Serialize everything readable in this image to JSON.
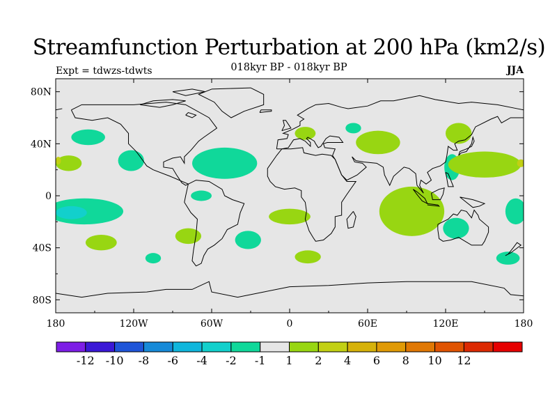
{
  "title": "Streamfunction Perturbation at 200 hPa (km2/s)",
  "subtitle": "018kyr BP - 018kyr BP",
  "left_string": "Expt = tdwzs-tdwts",
  "right_string": "JJA",
  "chart_data": {
    "type": "map-contour",
    "projection": "cylindrical equidistant",
    "xlim": [
      -180,
      180
    ],
    "ylim": [
      -90,
      90
    ],
    "x_ticks": [
      {
        "value": -180,
        "label": "180"
      },
      {
        "value": -120,
        "label": "120W"
      },
      {
        "value": -60,
        "label": "60W"
      },
      {
        "value": 0,
        "label": "0"
      },
      {
        "value": 60,
        "label": "60E"
      },
      {
        "value": 120,
        "label": "120E"
      },
      {
        "value": 180,
        "label": "180"
      }
    ],
    "y_ticks": [
      {
        "value": 80,
        "label": "80N"
      },
      {
        "value": 40,
        "label": "40N"
      },
      {
        "value": 0,
        "label": "0"
      },
      {
        "value": -40,
        "label": "40S"
      },
      {
        "value": -80,
        "label": "80S"
      }
    ],
    "colorbar": {
      "colors": [
        "#7d1ee6",
        "#3a18d6",
        "#1f55d8",
        "#178ad8",
        "#10b6dc",
        "#12d0cc",
        "#10d89a",
        "#e6e6e6",
        "#98d612",
        "#c2d014",
        "#d6b20a",
        "#e09a06",
        "#e07804",
        "#e05402",
        "#dc2a02",
        "#e60000"
      ],
      "labels": [
        "-12",
        "-10",
        "-8",
        "-6",
        "-4",
        "-2",
        "-1",
        "1",
        "2",
        "4",
        "6",
        "8",
        "10",
        "12"
      ]
    },
    "regions": [
      {
        "category": "-2 to -1",
        "color": "#10d89a",
        "center": [
          -155,
          45
        ],
        "radius": [
          13,
          6
        ]
      },
      {
        "category": "-2 to -1",
        "color": "#10d89a",
        "center": [
          -122,
          27
        ],
        "radius": [
          10,
          8
        ]
      },
      {
        "category": "-2 to -1",
        "color": "#10d89a",
        "center": [
          -50,
          25
        ],
        "radius": [
          25,
          12
        ]
      },
      {
        "category": "-2 to -1",
        "color": "#10d89a",
        "center": [
          -68,
          0
        ],
        "radius": [
          8,
          4
        ]
      },
      {
        "category": "-2 to -1",
        "color": "#10d89a",
        "center": [
          -32,
          -34
        ],
        "radius": [
          10,
          7
        ]
      },
      {
        "category": "-2 to -1",
        "color": "#10d89a",
        "center": [
          -105,
          -48
        ],
        "radius": [
          6,
          4
        ]
      },
      {
        "category": "-2 to -1",
        "color": "#10d89a",
        "center": [
          49,
          52
        ],
        "radius": [
          6,
          4
        ]
      },
      {
        "category": "-2 to -1",
        "color": "#10d89a",
        "center": [
          -158,
          -12
        ],
        "radius": [
          30,
          10
        ]
      },
      {
        "category": "-2 to -1",
        "color": "#10d89a",
        "center": [
          174,
          -12
        ],
        "radius": [
          8,
          10
        ]
      },
      {
        "category": "-2 to -1",
        "color": "#10d89a",
        "center": [
          125,
          22
        ],
        "radius": [
          6,
          10
        ]
      },
      {
        "category": "-2 to -1",
        "color": "#10d89a",
        "center": [
          128,
          -25
        ],
        "radius": [
          10,
          8
        ]
      },
      {
        "category": "-2 to -1",
        "color": "#10d89a",
        "center": [
          168,
          -48
        ],
        "radius": [
          9,
          5
        ]
      },
      {
        "category": "-4 to -2",
        "color": "#12d0cc",
        "center": [
          -168,
          -13
        ],
        "radius": [
          12,
          5
        ]
      },
      {
        "category": "1 to 2",
        "color": "#98d612",
        "center": [
          -170,
          25
        ],
        "radius": [
          10,
          6
        ]
      },
      {
        "category": "1 to 2",
        "color": "#98d612",
        "center": [
          -145,
          -36
        ],
        "radius": [
          12,
          6
        ]
      },
      {
        "category": "1 to 2",
        "color": "#98d612",
        "center": [
          -78,
          -31
        ],
        "radius": [
          10,
          6
        ]
      },
      {
        "category": "1 to 2",
        "color": "#98d612",
        "center": [
          0,
          -16
        ],
        "radius": [
          16,
          6
        ]
      },
      {
        "category": "1 to 2",
        "color": "#98d612",
        "center": [
          14,
          -47
        ],
        "radius": [
          10,
          5
        ]
      },
      {
        "category": "1 to 2",
        "color": "#98d612",
        "center": [
          12,
          48
        ],
        "radius": [
          8,
          5
        ]
      },
      {
        "category": "1 to 2",
        "color": "#98d612",
        "center": [
          68,
          41
        ],
        "radius": [
          17,
          9
        ]
      },
      {
        "category": "1 to 2",
        "color": "#98d612",
        "center": [
          94,
          -12
        ],
        "radius": [
          25,
          19
        ]
      },
      {
        "category": "1 to 2",
        "color": "#98d612",
        "center": [
          150,
          24
        ],
        "radius": [
          28,
          10
        ]
      },
      {
        "category": "1 to 2",
        "color": "#98d612",
        "center": [
          130,
          48
        ],
        "radius": [
          10,
          8
        ]
      },
      {
        "category": "2 to 4",
        "color": "#c2d014",
        "center": [
          178,
          25
        ],
        "radius": [
          3,
          3
        ]
      },
      {
        "category": "2 to 4",
        "color": "#c2d014",
        "center": [
          -178,
          27
        ],
        "radius": [
          2,
          3
        ]
      }
    ]
  }
}
